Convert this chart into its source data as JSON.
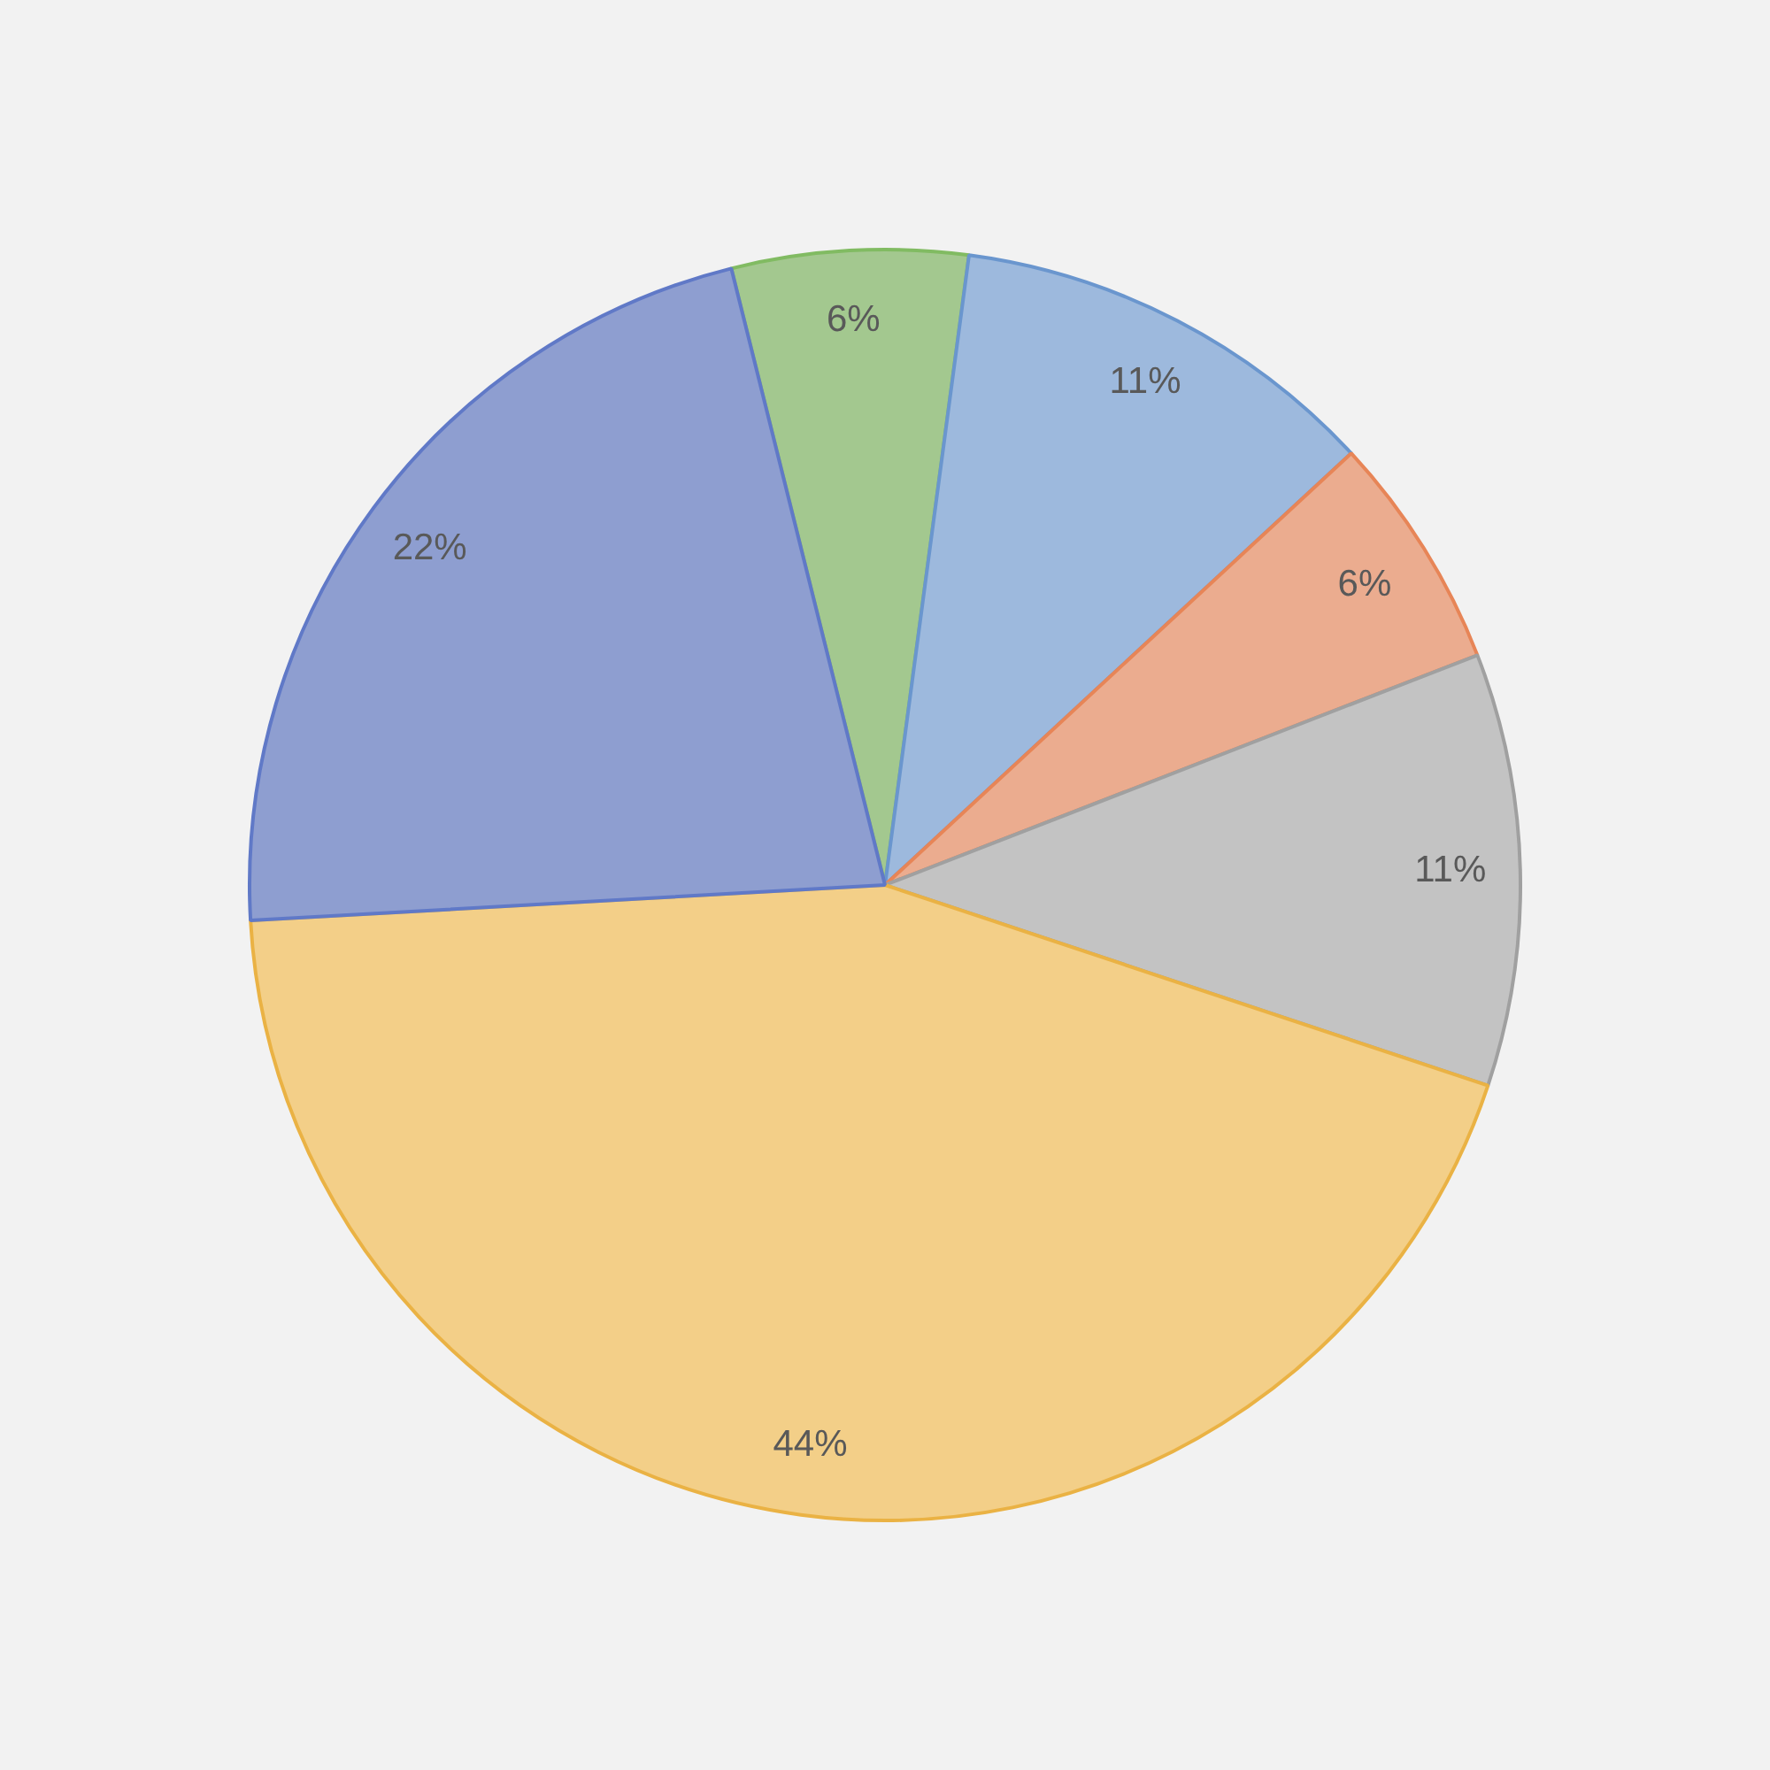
{
  "chart_data": {
    "type": "pie",
    "categories": [
      null,
      null,
      null,
      null,
      null,
      null
    ],
    "values": [
      6,
      11,
      6,
      11,
      44,
      22
    ],
    "colors": [
      "#a3c88f",
      "#9db9dd",
      "#ebac8f",
      "#c3c3c3",
      "#f3cf88",
      "#8e9ed0"
    ],
    "value_labels": [
      "6%",
      "11%",
      "6%",
      "11%",
      "44%",
      "22%"
    ]
  }
}
